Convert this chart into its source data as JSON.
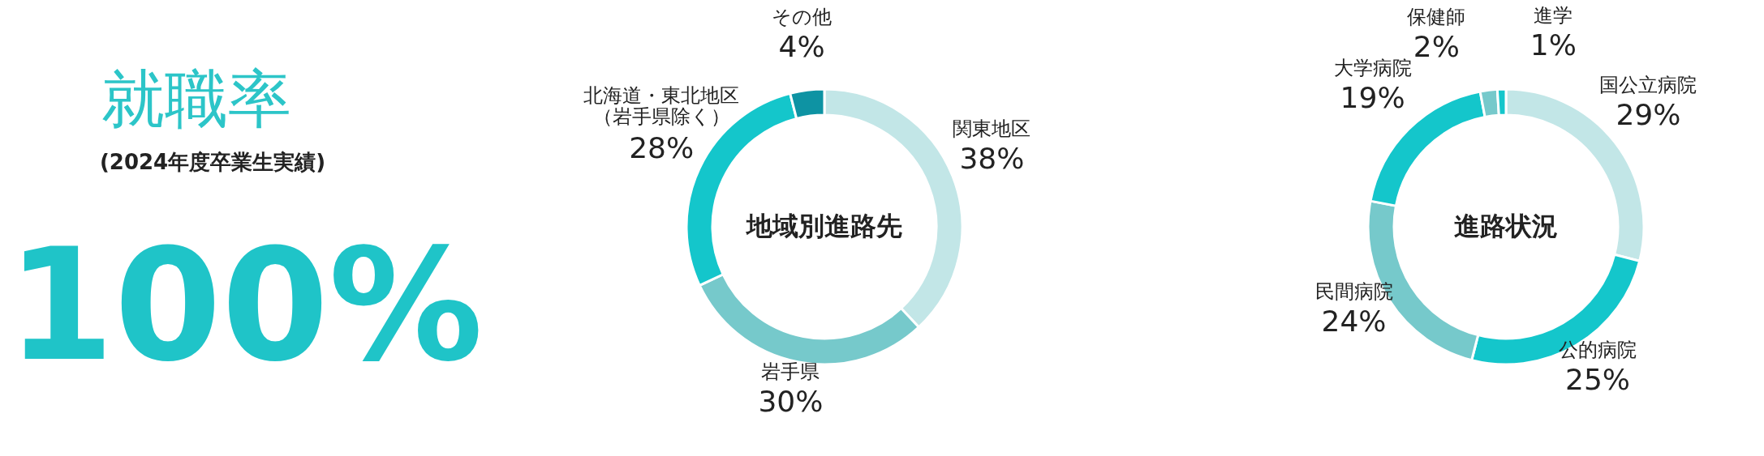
{
  "chart_data": [
    {
      "type": "other",
      "title": "就職率",
      "subtitle": "(2024年度卒業生実績)",
      "annotations": [
        "100%"
      ]
    },
    {
      "type": "donut",
      "title": "地域別進路先",
      "categories": [
        "関東地区",
        "岩手県",
        "北海道・東北地区（岩手県除く）",
        "その他"
      ],
      "values": [
        38,
        30,
        28,
        4
      ],
      "value_labels": [
        "38%",
        "30%",
        "28%",
        "4%"
      ],
      "colors": [
        "#c2e6e7",
        "#76c9cb",
        "#14c6cb",
        "#0e93a3"
      ]
    },
    {
      "type": "donut",
      "title": "進路状況",
      "categories": [
        "国公立病院",
        "公的病院",
        "民間病院",
        "大学病院",
        "保健師",
        "進学"
      ],
      "values": [
        29,
        25,
        24,
        19,
        2,
        1
      ],
      "value_labels": [
        "29%",
        "25%",
        "24%",
        "19%",
        "2%",
        "1%"
      ],
      "colors": [
        "#c2e6e7",
        "#14c6cb",
        "#76c9cb",
        "#14c6cb",
        "#76c9cb",
        "#14c6cb"
      ]
    }
  ]
}
